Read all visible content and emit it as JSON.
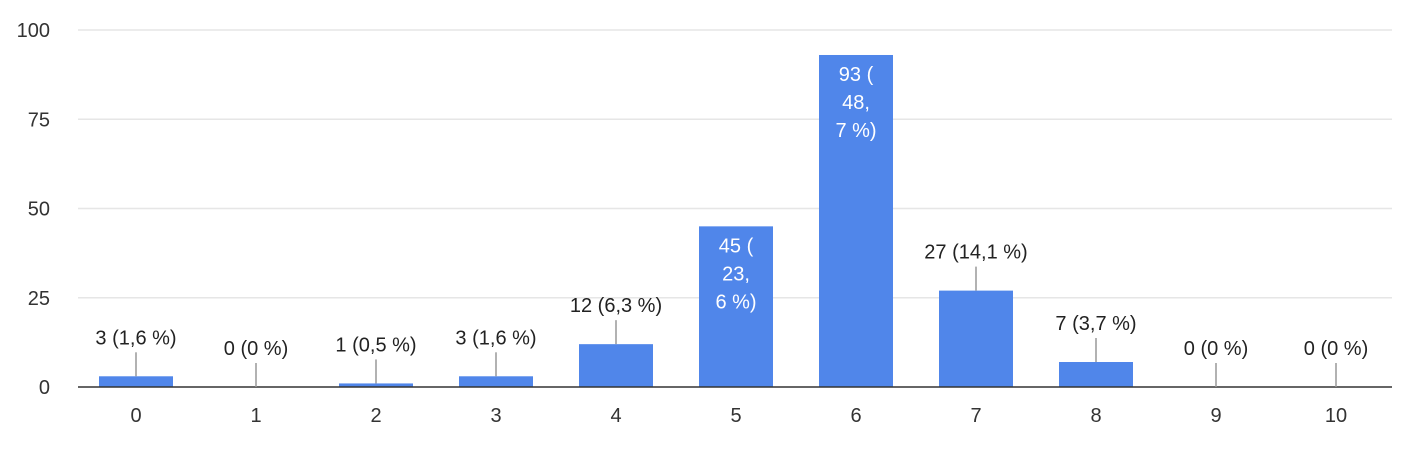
{
  "chart_data": {
    "type": "bar",
    "categories": [
      "0",
      "1",
      "2",
      "3",
      "4",
      "5",
      "6",
      "7",
      "8",
      "9",
      "10"
    ],
    "values": [
      3,
      0,
      1,
      3,
      12,
      45,
      93,
      27,
      7,
      0,
      0
    ],
    "data_labels": [
      "3 (1,6 %)",
      "0 (0 %)",
      "1 (0,5 %)",
      "3 (1,6 %)",
      "12 (6,3 %)",
      "45 (\n23,\n6 %)",
      "93 (\n48,\n7 %)",
      "27 (14,1 %)",
      "7 (3,7 %)",
      "0 (0 %)",
      "0 (0 %)"
    ],
    "ylim": [
      0,
      100
    ],
    "yticks": [
      "0",
      "25",
      "50",
      "75",
      "100"
    ],
    "grid": true,
    "bar_color": "#5086ea",
    "grid_color": "#e6e6e6",
    "axis_color": "#333333"
  }
}
